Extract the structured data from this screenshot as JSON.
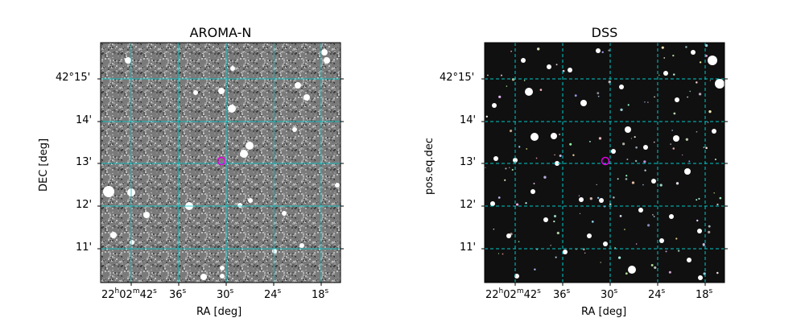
{
  "panels": [
    {
      "title": "AROMA-N",
      "xlabel": "RA [deg]",
      "ylabel": "DEC [deg]",
      "style": "noisy"
    },
    {
      "title": "DSS",
      "xlabel": "RA [deg]",
      "ylabel": "pos.eq.dec",
      "style": "dark"
    }
  ],
  "ra_ticks": [
    {
      "h": "22",
      "m": "02",
      "s": "42",
      "full": true
    },
    {
      "s": "36"
    },
    {
      "s": "30"
    },
    {
      "s": "24"
    },
    {
      "s": "18"
    }
  ],
  "dec_ticks": [
    "42°15'",
    "14'",
    "13'",
    "12'",
    "11'"
  ],
  "colors": {
    "grid": "#00c8c8",
    "target_marker": "#e000e0"
  }
}
